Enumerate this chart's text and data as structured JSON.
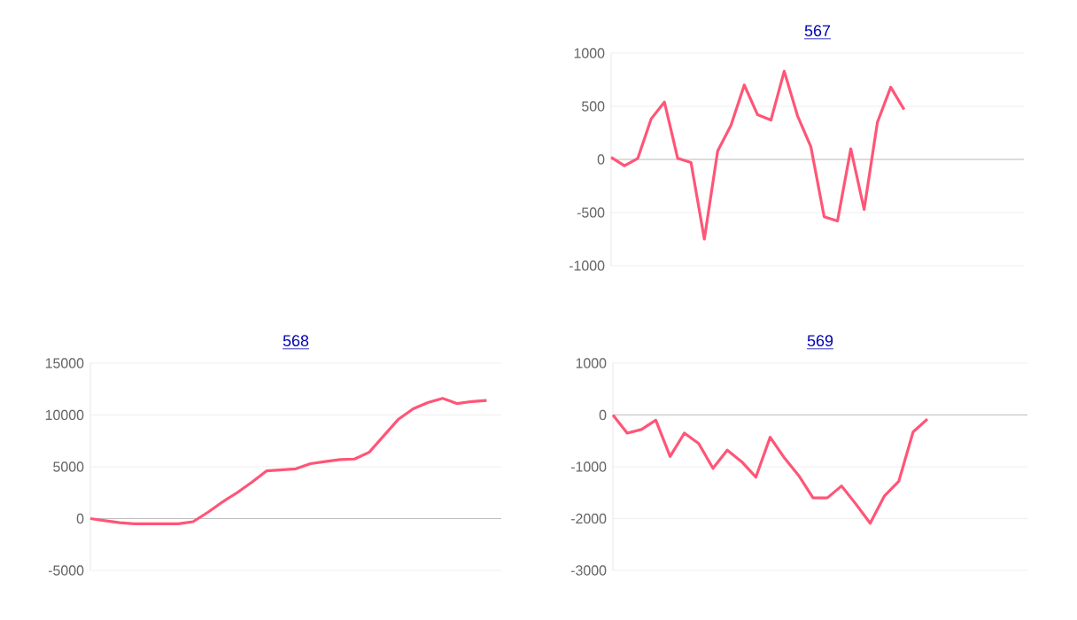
{
  "chart_data": [
    {
      "type": "line",
      "title": "567",
      "categories": [
        null,
        null,
        null,
        null,
        null,
        null,
        null,
        null,
        null,
        null,
        null,
        null,
        null,
        null,
        null,
        null,
        null,
        null,
        null,
        null,
        null,
        null,
        null,
        null,
        null,
        null,
        null,
        null,
        null,
        null,
        null,
        null
      ],
      "values": [
        20,
        -60,
        10,
        380,
        540,
        10,
        -30,
        -750,
        80,
        320,
        700,
        420,
        370,
        830,
        410,
        120,
        -540,
        -580,
        100,
        -470,
        350,
        680,
        470,
        null,
        null,
        null,
        null,
        null,
        null,
        null,
        null,
        null
      ],
      "color": "#ff5577",
      "ylim": [
        -1000,
        1000
      ],
      "yticks": [
        -1000,
        -500,
        0,
        500,
        1000
      ],
      "grid": "y",
      "tick_labels": "y"
    },
    {
      "type": "line",
      "title": "568",
      "categories": [
        null,
        null,
        null,
        null,
        null,
        null,
        null,
        null,
        null,
        null,
        null,
        null,
        null,
        null,
        null,
        null,
        null,
        null,
        null,
        null,
        null,
        null,
        null,
        null,
        null,
        null,
        null,
        null,
        null
      ],
      "values": [
        0,
        -200,
        -400,
        -500,
        -500,
        -500,
        -500,
        -300,
        600,
        1600,
        2500,
        3500,
        4600,
        4700,
        4800,
        5300,
        5500,
        5700,
        5750,
        6400,
        8000,
        9600,
        10600,
        11200,
        11600,
        11100,
        11300,
        11400,
        null
      ],
      "color": "#ff5577",
      "ylim": [
        -5000,
        15000
      ],
      "yticks": [
        -5000,
        0,
        5000,
        10000,
        15000
      ],
      "grid": "y",
      "tick_labels": "y"
    },
    {
      "type": "line",
      "title": "569",
      "categories": [
        null,
        null,
        null,
        null,
        null,
        null,
        null,
        null,
        null,
        null,
        null,
        null,
        null,
        null,
        null,
        null,
        null,
        null,
        null,
        null,
        null,
        null,
        null,
        null,
        null,
        null,
        null,
        null,
        null,
        null
      ],
      "values": [
        0,
        -350,
        -280,
        -100,
        -800,
        -350,
        -550,
        -1030,
        -680,
        -900,
        -1200,
        -430,
        -830,
        -1170,
        -1600,
        -1600,
        -1370,
        -1720,
        -2090,
        -1560,
        -1280,
        -330,
        -80,
        null,
        null,
        null,
        null,
        null,
        null,
        null
      ],
      "color": "#ff5577",
      "ylim": [
        -3000,
        1000
      ],
      "yticks": [
        -3000,
        -2000,
        -1000,
        0,
        1000
      ],
      "grid": "y",
      "tick_labels": "y"
    }
  ]
}
